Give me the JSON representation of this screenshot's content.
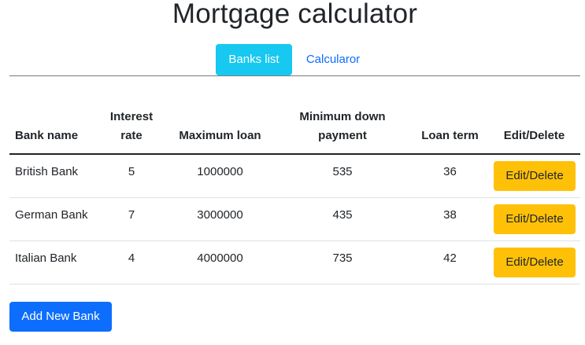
{
  "page": {
    "title": "Mortgage calculator"
  },
  "nav": {
    "tabs": [
      {
        "label": "Banks list",
        "active": true
      },
      {
        "label": "Calcularor",
        "active": false
      }
    ]
  },
  "table": {
    "headers": {
      "bank_name": "Bank name",
      "interest_rate": "Interest rate",
      "maximum_loan": "Maximum loan",
      "minimum_down_payment": "Minimum down payment",
      "loan_term": "Loan term",
      "edit_delete": "Edit/Delete"
    },
    "rows": [
      {
        "bank_name": "British Bank",
        "interest_rate": "5",
        "maximum_loan": "1000000",
        "minimum_down_payment": "535",
        "loan_term": "36",
        "action_label": "Edit/Delete"
      },
      {
        "bank_name": "German Bank",
        "interest_rate": "7",
        "maximum_loan": "3000000",
        "minimum_down_payment": "435",
        "loan_term": "38",
        "action_label": "Edit/Delete"
      },
      {
        "bank_name": "Italian Bank",
        "interest_rate": "4",
        "maximum_loan": "4000000",
        "minimum_down_payment": "735",
        "loan_term": "42",
        "action_label": "Edit/Delete"
      }
    ]
  },
  "actions": {
    "add_label": "Add New Bank"
  },
  "colors": {
    "active_tab": "#17c8f0",
    "link": "#0d6efd",
    "edit_button": "#ffc107",
    "add_button": "#0d6efd"
  }
}
